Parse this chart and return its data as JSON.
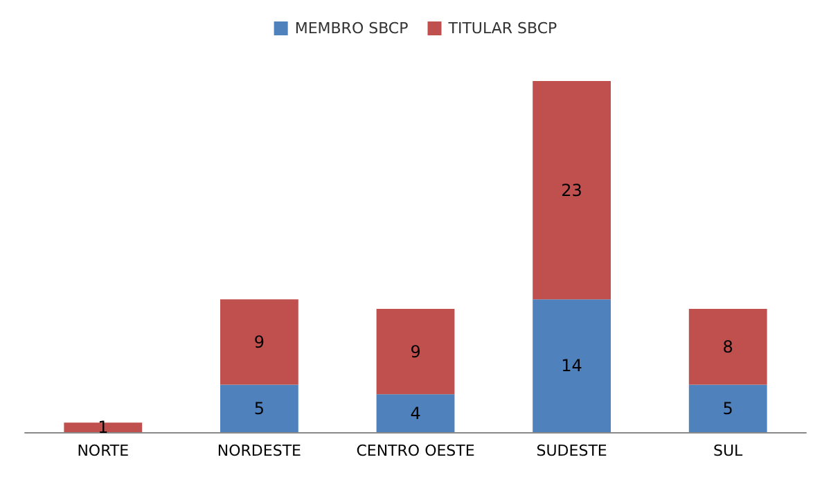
{
  "chart_data": {
    "type": "bar",
    "stacked": true,
    "categories": [
      "NORTE",
      "NORDESTE",
      "CENTRO OESTE",
      "SUDESTE",
      "SUL"
    ],
    "series": [
      {
        "name": "MEMBRO SBCP",
        "color": "#4f81bd",
        "values": [
          null,
          5,
          4,
          14,
          5
        ]
      },
      {
        "name": "TITULAR SBCP",
        "color": "#c0504d",
        "values": [
          1,
          9,
          9,
          23,
          8
        ]
      }
    ],
    "data_labels": true,
    "legend": "top",
    "grid": false
  }
}
